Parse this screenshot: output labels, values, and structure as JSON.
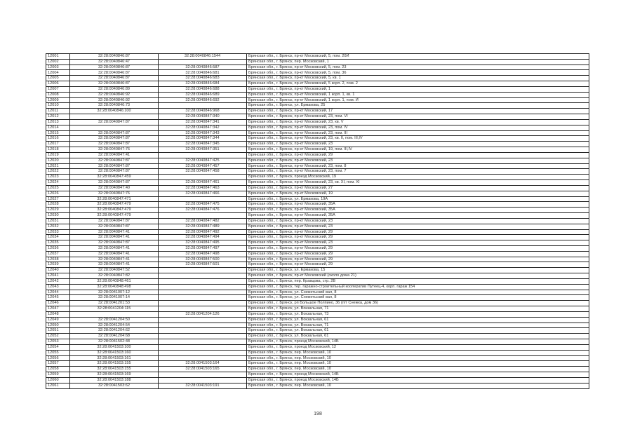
{
  "table": {
    "rows": [
      [
        "12001",
        "32:28:0040846:87",
        "32:28:0040846:1544",
        "Брянская обл., г. Брянск, пр-кт Московский, 5, пом. 20И"
      ],
      [
        "12002",
        "32:28:0040846:47",
        "",
        "Брянская обл., г. Брянск, пер. Московский, 1"
      ],
      [
        "12003",
        "32:28:0040846:87",
        "32:28:0040846:587",
        "Брянская обл., г. Брянск, пр-кт Московский, 5, пом. 23"
      ],
      [
        "12004",
        "32:28:0040846:87",
        "32:28:0040846:681",
        "Брянская обл., г. Брянск, пр-кт Московский, 5, пом. 36"
      ],
      [
        "12005",
        "32:28:0040846:87",
        "32:28:0040846:683",
        "Брянская обл., г. Брянск, пр-кт Московский, 5, кв. 1"
      ],
      [
        "12006",
        "32:28:0040846:87",
        "32:28:0040846:684",
        "Брянская обл., г. Брянск, пр-кт Московский, 5 корп. 2, пом. 2"
      ],
      [
        "12007",
        "32:28:0040846:89",
        "32:28:0040846:688",
        "Брянская обл., г. Брянск, пр-кт Московский, 1"
      ],
      [
        "12008",
        "32:28:0040846:92",
        "32:28:0040846:689",
        "Брянская обл., г. Брянск, пр-кт Московский, 1 корп. 1, кв. 1"
      ],
      [
        "12009",
        "32:28:0040846:92",
        "32:28:0040846:692",
        "Брянская обл., г. Брянск, пр-кт Московский, 1 корп. 1, пом. И"
      ],
      [
        "12010",
        "32:28:0040846:73",
        "",
        "Брянская обл., г. Брянск, ул. Ермакова, 25"
      ],
      [
        "12011",
        "32:28:0040846:100",
        "32:28:0040846:968",
        "Брянская обл., г. Брянск, пр-кт Московский, 17"
      ],
      [
        "12012",
        "",
        "32:28:0040847:340",
        "Брянская обл., г. Брянск, пр-кт Московский, 23, пом. VI"
      ],
      [
        "12013",
        "32:28:0040847:87",
        "32:28:0040847:341",
        "Брянская обл., г. Брянск, пр-кт Московский, 23, кв. V"
      ],
      [
        "12014",
        "",
        "32:28:0040847:342",
        "Брянская обл., г. Брянск, пр-кт Московский, 23, пом. IV"
      ],
      [
        "12015",
        "32:28:0040847:87",
        "32:28:0040847:343",
        "Брянская обл., г. Брянск, пр-кт Московский, 23, пом. III"
      ],
      [
        "12016",
        "32:28:0040847:87",
        "32:28:0040847:344",
        "Брянская обл., г. Брянск, пр-кт Московский, 23, кв. II, пом. III,IV"
      ],
      [
        "12017",
        "32:28:0040847:87",
        "32:28:0040847:345",
        "Брянская обл., г. Брянск, пр-кт Московский, 23"
      ],
      [
        "12018",
        "32:28:0040847:76",
        "32:28:0040847:351",
        "Брянская обл., г. Брянск, пр-кт Московский, 19, пом. III,IV"
      ],
      [
        "12019",
        "32:28:0040847:41",
        "",
        "Брянская обл., г. Брянск, пр-кт Московский, 29"
      ],
      [
        "12020",
        "32:28:0040847:87",
        "32:28:0040847:425",
        "Брянская обл., г. Брянск, пр-кт Московский, 23"
      ],
      [
        "12021",
        "32:28:0040847:87",
        "32:28:0040847:457",
        "Брянская обл., г. Брянск, пр-кт Московский, 23, пом. 8"
      ],
      [
        "12022",
        "32:28:0040847:87",
        "32:28:0040847:458",
        "Брянская обл., г. Брянск, пр-кт Московский, 23, пом. 7"
      ],
      [
        "12023",
        "32:28:0040847:459",
        "",
        "Брянская обл., г. Брянск, проезд Московский, 19"
      ],
      [
        "12024",
        "32:28:0040847:87",
        "32:28:0040847:461",
        "Брянская обл., г. Брянск, пр-кт Московский, 23, кв. XI, пом. XI"
      ],
      [
        "12025",
        "32:28:0040847:40",
        "32:28:0040847:463",
        "Брянская обл., г. Брянск, пр-кт Московский, 27"
      ],
      [
        "12026",
        "32:28:0040847:76",
        "32:28:0040847:466",
        "Брянская обл., г. Брянск, пр-кт Московский, 19"
      ],
      [
        "12027",
        "32:28:0040847:471",
        "",
        "Брянская обл., г. Брянск, ул. Ермакова, 19А"
      ],
      [
        "12028",
        "32:28:0040847:479",
        "32:28:0040847:475",
        "Брянская обл., г. Брянск, пр-кт Московский, 35А"
      ],
      [
        "12029",
        "32:28:0040847:479",
        "32:28:0040847:476",
        "Брянская обл., г. Брянск, пр-кт Московский, 35А"
      ],
      [
        "12030",
        "32:28:0040847:479",
        "",
        "Брянская обл., г. Брянск, пр-кт Московский, 35А"
      ],
      [
        "12031",
        "32:28:0040847:87",
        "32:28:0040847:482",
        "Брянская обл., г. Брянск, пр-кт Московский, 23"
      ],
      [
        "12032",
        "32:28:0040847:87",
        "32:28:0040847:489",
        "Брянская обл., г. Брянск, пр-кт Московский, 23"
      ],
      [
        "12033",
        "32:28:0040847:41",
        "32:28:0040847:492",
        "Брянская обл., г. Брянск, пр-кт Московский, 29"
      ],
      [
        "12034",
        "32:28:0040847:41",
        "32:28:0040847:494",
        "Брянская обл., г. Брянск, пр-кт Московский, 29"
      ],
      [
        "12035",
        "32:28:0040847:87",
        "32:28:0040847:495",
        "Брянская обл., г. Брянск, пр-кт Московский, 23"
      ],
      [
        "12036",
        "32:28:0040847:41",
        "32:28:0040847:497",
        "Брянская обл., г. Брянск, пр-кт Московский, 29"
      ],
      [
        "12037",
        "32:28:0040847:41",
        "32:28:0040847:498",
        "Брянская обл., г. Брянск, пр-кт Московский, 29"
      ],
      [
        "12038",
        "32:28:0040847:41",
        "32:28:0040847:500",
        "Брянская обл., г. Брянск, пр-кт Московский, 29"
      ],
      [
        "12039",
        "32:28:0040847:41",
        "32:28:0040847:501",
        "Брянская обл., г. Брянск, пр-кт Московский, 29"
      ],
      [
        "12040",
        "32:28:0040847:52",
        "",
        "Брянская обл., г. Брянск, ул. Ермакова, 15"
      ],
      [
        "12041",
        "32:28:0040847:82",
        "",
        "Брянская обл., г. Брянск, пр-кт Московский (около дома 21)"
      ],
      [
        "12042",
        "32:28:0040848:461",
        "",
        "Брянская обл., г. Брянск, пер. Кравцова, стр. 2В"
      ],
      [
        "12043",
        "32:28:0040848:498",
        "",
        "Брянская обл., г. Брянск, тер. гаражно-строительный кооператив Путеец-4, корп. гараж 154"
      ],
      [
        "12044",
        "32:28:0041007:12",
        "",
        "Брянская обл., г. Брянск, ул. Снежетьский вал, 8"
      ],
      [
        "12045",
        "32:28:0041007:14",
        "",
        "Брянская обл., г. Брянск, ул. Снежетьский вал, 8"
      ],
      [
        "12046",
        "32:28:0041201:53",
        "",
        "Брянская обл., г. Брянск, рп Большое Полпино, 36 (п/т Снежка, дом 36)"
      ],
      [
        "12047",
        "32:28:0041204:115",
        "",
        "Брянская обл., г. Брянск, ул. Вокзальная, 71"
      ],
      [
        "12048",
        "",
        "32:28:0041204:126",
        "Брянская обл., г. Брянск, ул. Вокзальная, 73"
      ],
      [
        "12049",
        "32:28:0041204:50",
        "",
        "Брянская обл., г. Брянск, ул. Вокзальная, 61"
      ],
      [
        "12050",
        "32:28:0041204:54",
        "",
        "Брянская обл., г. Брянск, ул. Вокзальная, 71"
      ],
      [
        "12051",
        "32:28:0041204:62",
        "",
        "Брянская обл., г. Брянск, ул. Вокзальная, 61"
      ],
      [
        "12052",
        "32:28:0041204:68",
        "",
        "Брянская обл., г. Брянск, ул. Вокзальная, 61"
      ],
      [
        "12053",
        "32:28:0041502:48",
        "",
        "Брянская обл., г. Брянск, проезд Московский, 14Б"
      ],
      [
        "12054",
        "32:28:0041503:100",
        "",
        "Брянская обл., г. Брянск, проезд Московский, 12"
      ],
      [
        "12055",
        "32:28:0041503:160",
        "",
        "Брянская обл., г. Брянск, пер. Московский, 10"
      ],
      [
        "12056",
        "32:28:0041503:161",
        "",
        "Брянская обл., г. Брянск, пер. Московский, 10"
      ],
      [
        "12057",
        "32:28:0041503:155",
        "32:28:0041503:164",
        "Брянская обл., г. Брянск, пер. Московский, 10"
      ],
      [
        "12058",
        "32:28:0041503:155",
        "32:28:0041503:165",
        "Брянская обл., г. Брянск, пер. Московский, 10"
      ],
      [
        "12059",
        "32:28:0041503:169",
        "",
        "Брянская обл., г. Брянск, проезд Московский, 14Б"
      ],
      [
        "12060",
        "32:28:0041503:188",
        "",
        "Брянская обл., г. Брянск, проезд Московский, 14Б"
      ],
      [
        "12061",
        "32:28:0041503:62",
        "32:28:0041503:191",
        "Брянская обл., г. Брянск, пер. Московский, 10"
      ]
    ]
  },
  "footer": {
    "page_number": "198"
  }
}
